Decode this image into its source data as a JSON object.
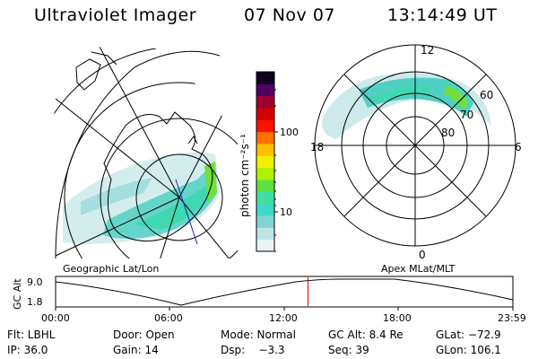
{
  "header": {
    "title": "Ultraviolet Imager",
    "date": "07 Nov 07",
    "time": "13:14:49 UT"
  },
  "left_map": {
    "label": "Geographic Lat/Lon"
  },
  "right_map": {
    "label": "Apex MLat/MLT",
    "mlt_labels": [
      "12",
      "18",
      "6",
      "0"
    ],
    "lat_labels": [
      "60",
      "70",
      "80"
    ]
  },
  "colorbar": {
    "unit_label": "photon cm⁻²s⁻¹",
    "ticks": [
      "100",
      "10"
    ],
    "scale": "log",
    "colors": [
      "#e8f4f4",
      "#c0e4e4",
      "#80d4d4",
      "#40d8c8",
      "#40e0a0",
      "#60e040",
      "#b0f000",
      "#f0f000",
      "#ffc000",
      "#ff7000",
      "#ff1000",
      "#d00000",
      "#a00030",
      "#500060",
      "#100020"
    ]
  },
  "altitude_plot": {
    "ylabel": "GC Alt",
    "ytick_top": "9.0",
    "ytick_bottom": "1.8",
    "xticks": [
      "00:00",
      "06:00",
      "12:00",
      "18:00",
      "23:59"
    ],
    "current_time_marker": "13:14:49",
    "marker_color": "#cc0000"
  },
  "info": {
    "row1": {
      "flt": "Flt: LBHL",
      "door": "Door: Open",
      "mode": "Mode: Normal",
      "gcalt": "GC Alt: 8.4 Re",
      "glat": "GLat: −72.9"
    },
    "row2": {
      "ip": "IP: 36.0",
      "gain": "Gain: 14",
      "dsp": "Dsp:    −3.3",
      "seq": "Seq: 39",
      "glon": "GLon: 106.1"
    }
  }
}
